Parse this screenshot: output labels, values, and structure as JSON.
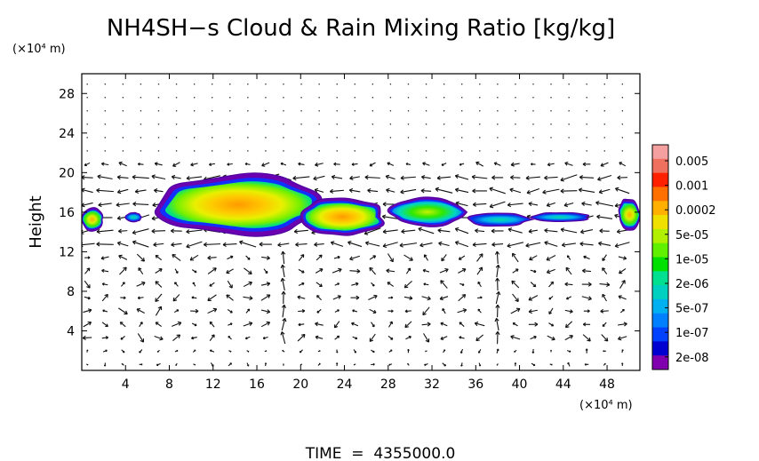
{
  "chart_data": {
    "type": "heatmap",
    "title": "NH4SH−s Cloud & Rain Mixing Ratio [kg/kg]",
    "ylabel": "Height",
    "y_unit": "(×10⁴ m)",
    "x_unit": "(×10⁴ m)",
    "footer": "TIME  =  4355000.0",
    "xlim": [
      0,
      51
    ],
    "ylim": [
      0,
      30
    ],
    "x_ticks": [
      4,
      8,
      12,
      16,
      20,
      24,
      28,
      32,
      36,
      40,
      44,
      48
    ],
    "y_ticks": [
      4,
      8,
      12,
      16,
      20,
      24,
      28
    ],
    "colorbar": {
      "labels": [
        "0.005",
        "0.001",
        "0.0002",
        "5e-05",
        "1e-05",
        "2e-06",
        "5e-07",
        "1e-07",
        "2e-08"
      ],
      "colors": [
        "#f4a0a0",
        "#f07060",
        "#ff2000",
        "#ff7000",
        "#ffb000",
        "#f0e000",
        "#b0f000",
        "#60f000",
        "#00e000",
        "#00e090",
        "#00d0c0",
        "#00b0f0",
        "#0080ff",
        "#0040ff",
        "#0000d0",
        "#8000b0"
      ]
    },
    "cloud_regions": [
      {
        "x_range": [
          0,
          2
        ],
        "y_range": [
          14,
          16.5
        ],
        "peak": "5e-05"
      },
      {
        "x_range": [
          4,
          5.5
        ],
        "y_range": [
          15,
          16
        ],
        "peak": "1e-07"
      },
      {
        "x_range": [
          6.5,
          22.5
        ],
        "y_range": [
          13.5,
          20
        ],
        "peak": "0.0002"
      },
      {
        "x_range": [
          19.5,
          28
        ],
        "y_range": [
          13.5,
          17.5
        ],
        "peak": "0.0002"
      },
      {
        "x_range": [
          28,
          35
        ],
        "y_range": [
          14.5,
          17.5
        ],
        "peak": "1e-05"
      },
      {
        "x_range": [
          35,
          41
        ],
        "y_range": [
          14.5,
          16
        ],
        "peak": "2e-06"
      },
      {
        "x_range": [
          41,
          46.5
        ],
        "y_range": [
          15,
          16
        ],
        "peak": "5e-07"
      },
      {
        "x_range": [
          49,
          51
        ],
        "y_range": [
          14,
          17.5
        ],
        "peak": "5e-05"
      }
    ],
    "vector_field": {
      "type": "wind arrows",
      "strong_flow_y_range": [
        12,
        20
      ],
      "convective_columns_x": [
        18,
        38
      ]
    }
  }
}
